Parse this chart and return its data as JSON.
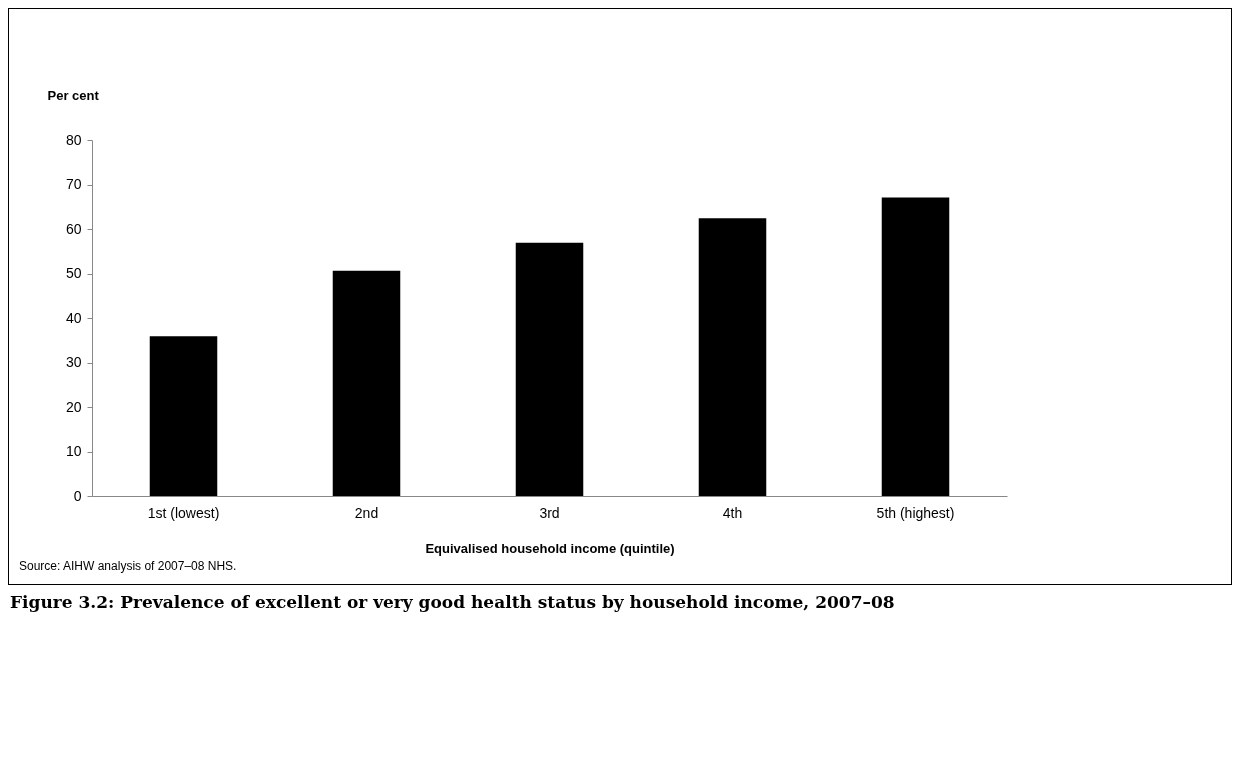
{
  "chart_data": {
    "type": "bar",
    "title": "Figure 3.2: Prevalence of excellent or very good health status by household income, 2007–08",
    "xlabel": "Equivalised household income (quintile)",
    "ylabel": "Per cent",
    "categories": [
      "1st (lowest)",
      "2nd",
      "3rd",
      "4th",
      "5th (highest)"
    ],
    "values": [
      35.9,
      50.6,
      56.9,
      62.4,
      67.1
    ],
    "color": "#000000",
    "ylim": [
      0,
      80
    ],
    "yticks": [
      0,
      10,
      20,
      30,
      40,
      50,
      60,
      70,
      80
    ],
    "grid": false,
    "legend": false,
    "annotations": [
      "Source: AIHW analysis of 2007–08 NHS."
    ]
  }
}
